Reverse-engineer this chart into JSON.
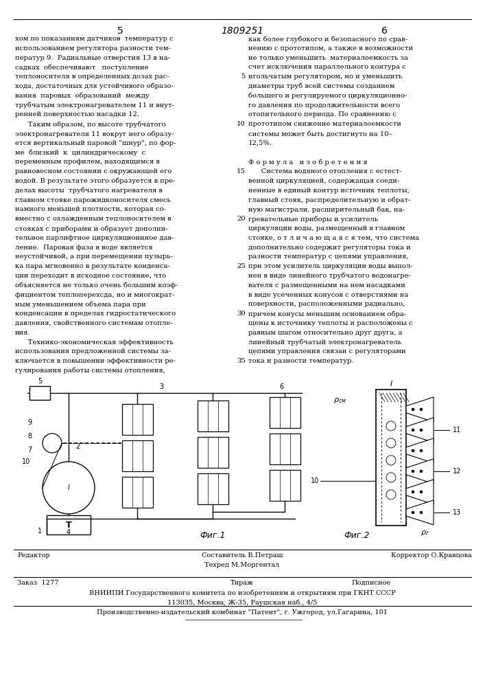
{
  "bg_color": "#ffffff",
  "page_number_left": "5",
  "patent_number": "1809251",
  "page_number_right": "6",
  "left_col_lines": [
    "хом по показаниям датчиков  температур с",
    "использованием регулятора разности тем-",
    "ператур 9.  Радиальные отверстия 13 в на-",
    "садках  обеспечивают   поступление",
    "теплоносителя в определенных дозах рас-",
    "хода, достаточных для устойчивого образо-",
    "вания  паровых  образований  между",
    "трубчатым электронагревателем 11 и внут-",
    "ренней поверхностью насадки 12.",
    "      Таким образом, по высоте трубчатого",
    "электронагревателя 11 вокруг него образу-",
    "ется вертикальный паровой \"шнур\", по фор-",
    "ме  близкий  к  цилиндрическому  с",
    "переменным профилем, находящимся в",
    "равновесном состоянии с окружающей его",
    "водой. В результате этого образуется в пре-",
    "делах высоты  трубчатого нагревателя в",
    "главном стояке парожидконосителя смесь",
    "намного меньшей плотности, которая со-",
    "вместно с охлажденным теплоносителем в",
    "стояках с приборами и образует дополни-",
    "тельное парлифтное циркуляционнное дав-",
    "ление.  Паровая фаза в воде является",
    "неустойчивой, а при перемещении пузырь-",
    "ка пара мгновенно в результате конденса-",
    "ции переходит в исходное состояние, что",
    "объясняется не только очень большим коэф-",
    "фициентом теплоперехсда, но и многократ-",
    "ным уменьшением объема пара при",
    "конденсации в пределах гидростатического",
    "давления, свойственного системам отопле-",
    "ния.",
    "      Технико-экономическая эффективность",
    "использования предложенной системы за-",
    "ключается в повышении эффективности ре-",
    "гулирования работы системы отопления,"
  ],
  "right_col_lines": [
    "как более глубокого и безопасного по срав-",
    "нению с прототипом, а также в возможности",
    "не только уменьшить  материалоемкость за",
    "счет исключения параллельного контура с",
    "игольчатым регулятором, но и уменьшить",
    "диаметры труб всей системы созданием",
    "большего и регулируемого циркуляционно-",
    "го давления по продолжительности всего",
    "отопительного периода. По сравнению с",
    "прототипом снижение материалоемкости",
    "системы может быть достигнуто на 10–",
    "12,5%.",
    "",
    "Ф о р м у л а   и з о б р е т е н и я",
    "      Система водяного отопления с естест-",
    "венной циркуляцией, содержащая соеди-",
    "ненные в единый контур источник теплоты,",
    "главный стояк, распределительную и обрат-",
    "ную магистрали, расширительный бак, на-",
    "гревательные приборы и усилитель",
    "циркуляции воды, размещенный в главном",
    "стояке, о т л и ч а ю щ а я с я тем, что система",
    "дополнительно содержит регуляторы тока и",
    "разности температур с цепями управления,",
    "при этом усилитель циркуляции воды выпол-",
    "нен в виде линейного трубчатого водонагре-",
    "вателя с размещенными на нем насадками",
    "в виде усеченных конусов с отверстиями на",
    "поверхности, расположенными радиально,",
    "причем конусы меньшим основанием обра-",
    "щены к источнику теплоты и расположены с",
    "равным шагом относительно друг друга, а",
    "линейный трубчатый электронагреватель",
    "цепями управления связан с регуляторами",
    "тока и разности температур."
  ],
  "line_numbers": [
    "5",
    "10",
    "15",
    "20",
    "25",
    "30",
    "35"
  ],
  "line_number_rows": [
    4,
    9,
    14,
    19,
    24,
    29,
    34
  ],
  "fig1_label": "Фиг.1",
  "fig2_label": "Фиг.2",
  "footer_editor": "Редактор",
  "footer_composer": "Составитель В.Петраш",
  "footer_techred": "Техред М.Моргентал",
  "footer_corrector": "Корректор О.Кравцова",
  "footer_order": "Заказ  1277",
  "footer_tirazh": "Тираж",
  "footer_podpisnoe": "Подписное",
  "footer_vniiipi": "ВНИИПИ Государственного комитета по изобретениям и открытиям при ГКНТ СССР",
  "footer_address": "113035, Москва, Ж-35, Раушская наб., 4/5",
  "footer_patent": "Производственно-издательский комбинат \"Патент\", г. Ужгород, ул.Гагарина, 101"
}
